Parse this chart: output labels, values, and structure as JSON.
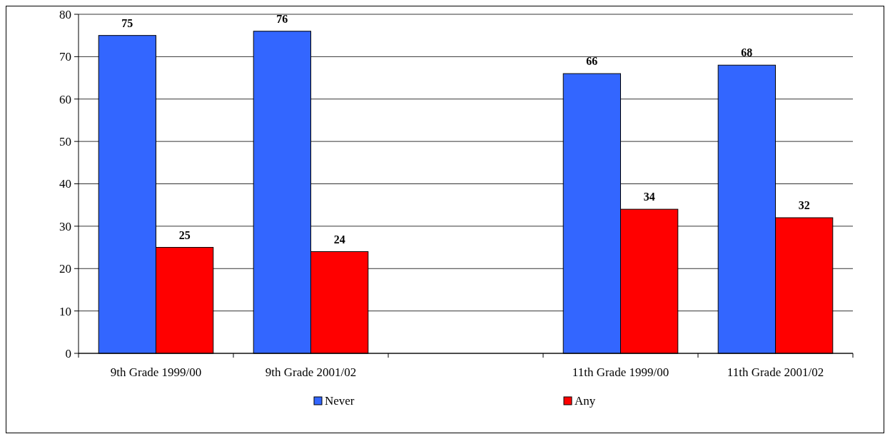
{
  "chart_data": {
    "type": "bar",
    "categories": [
      "9th Grade 1999/00",
      "9th Grade 2001/02",
      null,
      "11th Grade 1999/00",
      "11th Grade 2001/02"
    ],
    "series": [
      {
        "name": "Never",
        "color": "#3366ff",
        "values": [
          75,
          76,
          null,
          66,
          68
        ]
      },
      {
        "name": "Any",
        "color": "#ff0000",
        "values": [
          25,
          24,
          null,
          34,
          32
        ]
      }
    ],
    "ylim": [
      0,
      80
    ],
    "yticks": [
      0,
      10,
      20,
      30,
      40,
      50,
      60,
      70,
      80
    ],
    "grid": "y",
    "legend": "bottom",
    "data_labels": true
  }
}
